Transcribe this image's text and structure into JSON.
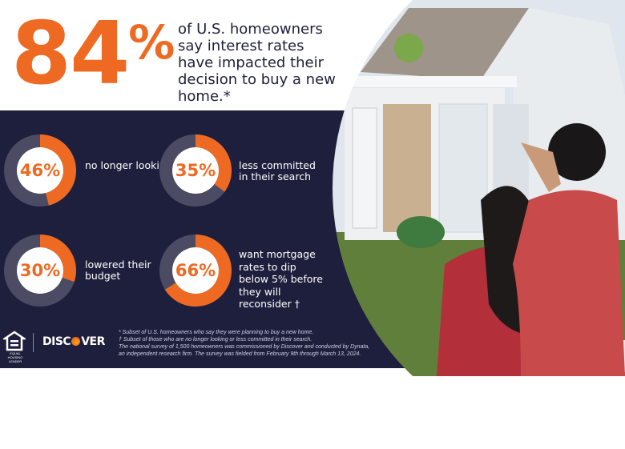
{
  "headline": {
    "stat": "84",
    "percent_sign": "%",
    "text": "of U.S. homeowners say interest rates have impacted their decision to buy a new home.*"
  },
  "stats": [
    {
      "value": 46,
      "label": "46%",
      "text": "no longer looking"
    },
    {
      "value": 35,
      "label": "35%",
      "text": "less committed in their search"
    },
    {
      "value": 30,
      "label": "30%",
      "text": "lowered their budget"
    },
    {
      "value": 66,
      "label": "66%",
      "text": "want mortgage rates to dip below 5% before they will reconsider †"
    }
  ],
  "colors": {
    "accent": "#ee6a22",
    "panel": "#1e1f3d",
    "ring_track": "#4b4c63"
  },
  "footer": {
    "ehl_label": "EQUAL HOUSING LENDER",
    "brand_pre": "DISC",
    "brand_post": "VER",
    "notes": [
      "* Subset of U.S. homeowners who say they were planning to buy a new home.",
      "† Subset of those who are no longer looking or less committed in their search.",
      "The national survey of 1,500 homeowners was commissioned by Discover and conducted by Dynata,",
      "an independent research firm. The survey was fielded from February 9th through March 13, 2024."
    ]
  },
  "photo": {
    "icon": "couple-looking-at-house-photo"
  }
}
